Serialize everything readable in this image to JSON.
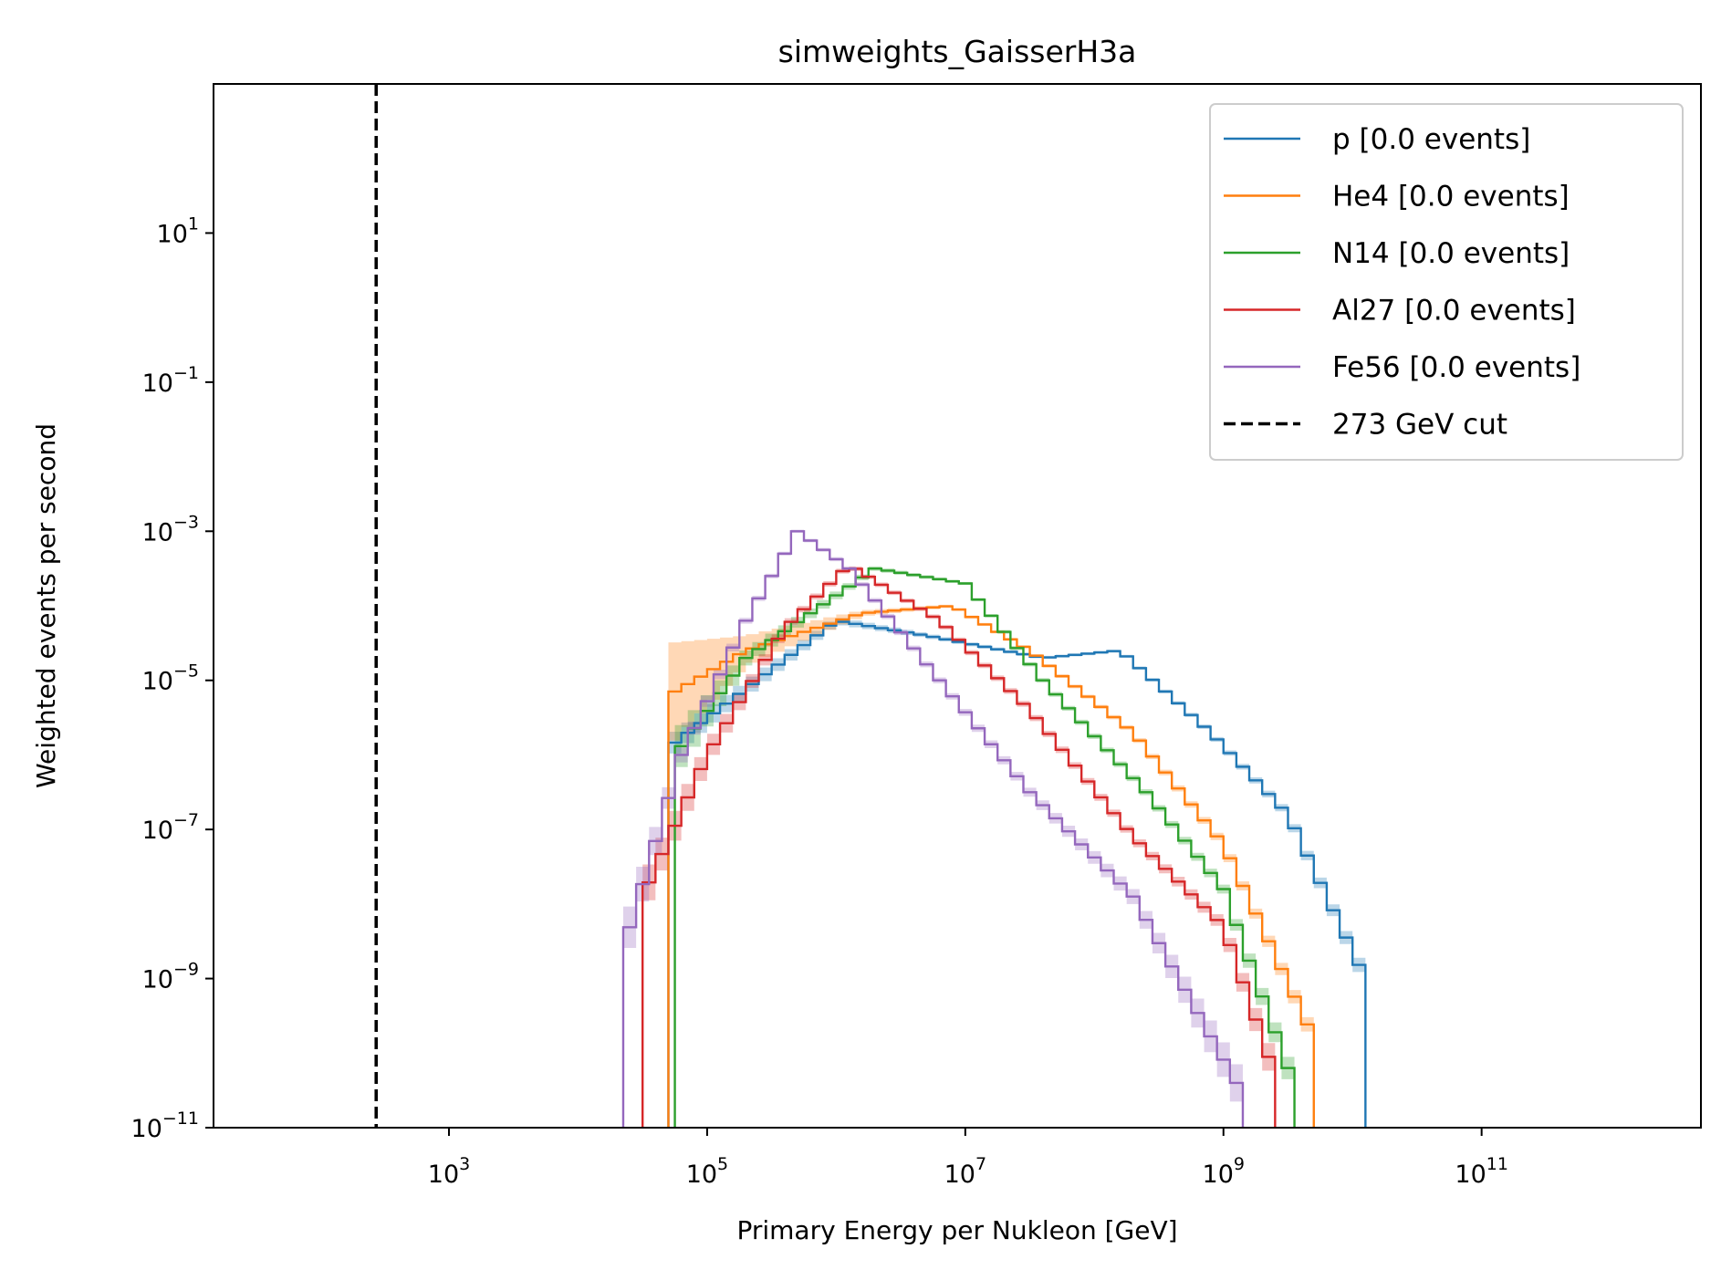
{
  "chart_data": {
    "type": "line",
    "drawstyle": "steps",
    "title": "simweights_GaisserH3a",
    "xlabel": "Primary Energy per Nukleon [GeV]",
    "ylabel": "Weighted events per second",
    "xscale": "log",
    "yscale": "log",
    "xlim": [
      15,
      5000000000000.0
    ],
    "ylim": [
      1e-11,
      1000
    ],
    "grid": false,
    "legend_position": "top-right",
    "x_ticks": [
      {
        "value": 1000,
        "base": "10",
        "exp": "3"
      },
      {
        "value": 100000,
        "base": "10",
        "exp": "5"
      },
      {
        "value": 10000000,
        "base": "10",
        "exp": "7"
      },
      {
        "value": 1000000000,
        "base": "10",
        "exp": "9"
      },
      {
        "value": 100000000000,
        "base": "10",
        "exp": "11"
      }
    ],
    "y_ticks": [
      {
        "value": 1e-11,
        "base": "10",
        "exp": "−11"
      },
      {
        "value": 1e-09,
        "base": "10",
        "exp": "−9"
      },
      {
        "value": 1e-07,
        "base": "10",
        "exp": "−7"
      },
      {
        "value": 1e-05,
        "base": "10",
        "exp": "−5"
      },
      {
        "value": 0.001,
        "base": "10",
        "exp": "−3"
      },
      {
        "value": 0.1,
        "base": "10",
        "exp": "−1"
      },
      {
        "value": 10,
        "base": "10",
        "exp": "1"
      }
    ],
    "series": [
      {
        "name": "p [0.0 events]",
        "color": "#1f77b4",
        "bins_log10": [
          4.7,
          6.0,
          6.7,
          7.6,
          8.2,
          8.9,
          9.5,
          10.1
        ],
        "values_log10": [
          -5.9,
          -4.2,
          -4.4,
          -4.7,
          -4.6,
          -5.7,
          -6.8,
          -9.0
        ],
        "band_log10": [
          0.15,
          0.05,
          0.03,
          0.02,
          0.02,
          0.03,
          0.05,
          0.1
        ]
      },
      {
        "name": "He4 [0.0 events]",
        "color": "#ff7f0e",
        "bins_log10": [
          4.7,
          5.3,
          6.2,
          6.9,
          7.5,
          8.3,
          9.0,
          9.7
        ],
        "values_log10": [
          -5.2,
          -4.6,
          -4.1,
          -4.0,
          -4.6,
          -5.7,
          -7.2,
          -9.8
        ],
        "band_log10": [
          0.7,
          0.2,
          0.04,
          0.02,
          0.02,
          0.03,
          0.05,
          0.1
        ]
      },
      {
        "name": "N14 [0.0 events]",
        "color": "#2ca02c",
        "bins_log10": [
          4.75,
          5.3,
          6.3,
          7.0,
          7.6,
          8.4,
          9.0,
          9.5
        ],
        "values_log10": [
          -6.0,
          -4.7,
          -3.5,
          -3.7,
          -5.0,
          -6.5,
          -7.8,
          -10.2
        ],
        "band_log10": [
          0.3,
          0.1,
          0.03,
          0.02,
          0.03,
          0.04,
          0.06,
          0.15
        ]
      },
      {
        "name": "Al27 [0.0 events]",
        "color": "#d62728",
        "bins_log10": [
          4.5,
          5.0,
          5.6,
          6.1,
          6.8,
          7.5,
          8.3,
          9.0,
          9.4
        ],
        "values_log10": [
          -7.9,
          -6.0,
          -4.3,
          -3.45,
          -4.2,
          -5.4,
          -7.1,
          -8.3,
          -10.3
        ],
        "band_log10": [
          0.25,
          0.15,
          0.05,
          0.03,
          0.03,
          0.04,
          0.05,
          0.08,
          0.2
        ]
      },
      {
        "name": "Fe56 [0.0 events]",
        "color": "#9467bd",
        "bins_log10": [
          4.35,
          4.8,
          5.3,
          5.7,
          6.1,
          6.8,
          7.5,
          8.3,
          9.1
        ],
        "values_log10": [
          -8.6,
          -6.0,
          -4.2,
          -3.0,
          -3.5,
          -5.0,
          -6.5,
          -7.9,
          -10.4
        ],
        "band_log10": [
          0.3,
          0.1,
          0.04,
          0.02,
          0.03,
          0.04,
          0.06,
          0.1,
          0.25
        ]
      }
    ],
    "reference_lines": [
      {
        "name": "273 GeV cut",
        "orientation": "vertical",
        "x": 273,
        "color": "#000000",
        "style": "dashed"
      }
    ]
  }
}
